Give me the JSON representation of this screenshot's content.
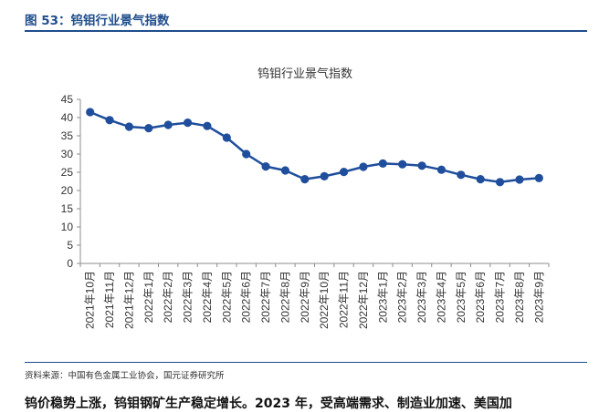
{
  "figure": {
    "label": "图 53：钨钼行业景气指数",
    "source": "资料来源：中国有色金属工业协会，国元证券研究所",
    "bottom_text": "钨价稳势上涨，钨钼钢矿生产稳定增长。2023 年，受高端需求、制造业加速、美国加"
  },
  "chart_data": {
    "type": "line",
    "title": "钨钼行业景气指数",
    "xlabel": "",
    "ylabel": "",
    "ylim": [
      0,
      45
    ],
    "yticks": [
      0,
      5,
      10,
      15,
      20,
      25,
      30,
      35,
      40,
      45
    ],
    "categories": [
      "2021年10月",
      "2021年11月",
      "2021年12月",
      "2022年1月",
      "2022年2月",
      "2022年3月",
      "2022年4月",
      "2022年5月",
      "2022年6月",
      "2022年7月",
      "2022年8月",
      "2022年9月",
      "2022年10月",
      "2022年11月",
      "2022年12月",
      "2023年1月",
      "2023年2月",
      "2023年3月",
      "2023年4月",
      "2023年5月",
      "2023年6月",
      "2023年7月",
      "2023年8月",
      "2023年9月"
    ],
    "series": [
      {
        "name": "钨钼行业景气指数",
        "color": "#1f4e9c",
        "values": [
          41.5,
          39.3,
          37.5,
          37.1,
          38.0,
          38.6,
          37.7,
          34.5,
          30.0,
          26.6,
          25.5,
          23.1,
          23.9,
          25.1,
          26.5,
          27.4,
          27.2,
          26.8,
          25.7,
          24.3,
          23.1,
          22.3,
          23.0,
          23.4
        ]
      }
    ]
  }
}
